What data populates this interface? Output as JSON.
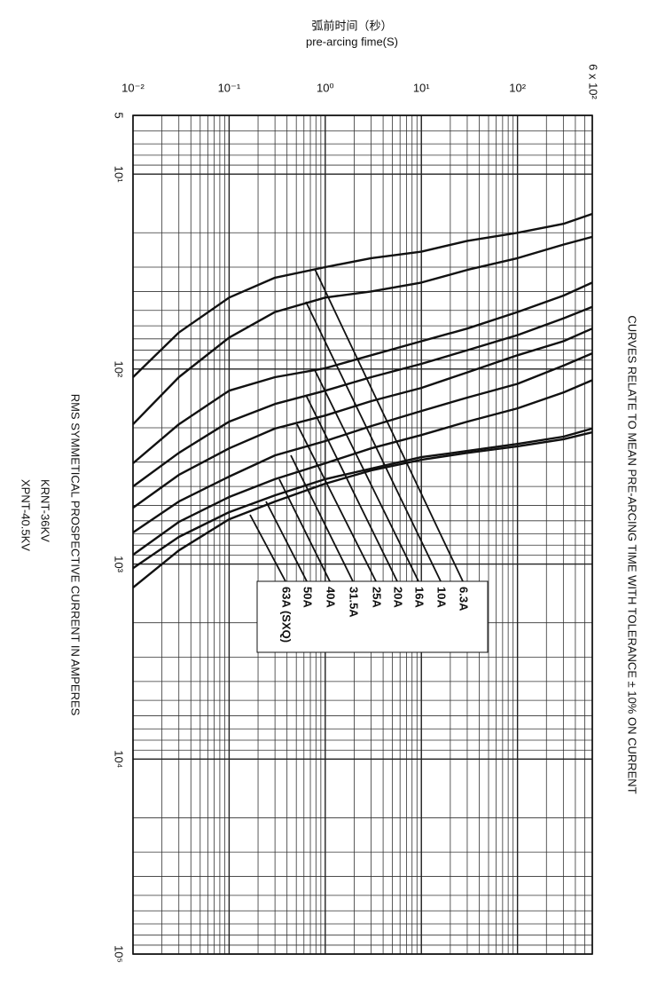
{
  "chart_data": {
    "type": "line",
    "title": "弧前时间（秒）",
    "subtitle": "pre-arcing fime(S)",
    "y_label": "RMS SYMMETICAL PROSPECTIVE CURRENT IN AMPERES",
    "models": [
      "KRNT-36KV",
      "XPNT-40.5KV"
    ],
    "annotation": "CURVES RELATE TO MEAN PRE-ARCING TIME WITH TOLERANCE ± 10% ON CURRENT",
    "log_x": true,
    "log_y": true,
    "y_inverted": true,
    "grid": true,
    "xlim": [
      0.01,
      600
    ],
    "ylim": [
      5,
      100000
    ],
    "xticks": [
      {
        "value": 0.01,
        "label": "10⁻²"
      },
      {
        "value": 0.1,
        "label": "10⁻¹"
      },
      {
        "value": 1,
        "label": "10⁰"
      },
      {
        "value": 10,
        "label": "10¹"
      },
      {
        "value": 100,
        "label": "10²"
      },
      {
        "value": 600,
        "label": "6 x 10²"
      }
    ],
    "yticks": [
      5,
      {
        "value": 10,
        "label": "10¹"
      },
      {
        "value": 100,
        "label": "10²"
      },
      {
        "value": 1000,
        "label": "10³"
      },
      {
        "value": 10000,
        "label": "10⁴"
      },
      {
        "value": 100000,
        "label": "10⁵"
      }
    ],
    "x": [
      0.01,
      0.03,
      0.1,
      0.3,
      1,
      3,
      10,
      30,
      100,
      300,
      600
    ],
    "series": [
      {
        "name": "6.3A",
        "color": "#111111",
        "values": [
          110,
          65,
          43,
          34,
          30,
          27,
          25,
          22,
          20,
          18,
          16
        ]
      },
      {
        "name": "10A",
        "color": "#111111",
        "values": [
          192,
          110,
          69,
          51,
          43,
          40,
          36,
          31,
          27,
          23,
          21
        ]
      },
      {
        "name": "16A",
        "color": "#111111",
        "values": [
          304,
          192,
          129,
          110,
          99,
          85,
          72,
          62,
          51,
          42,
          36
        ]
      },
      {
        "name": "20A",
        "color": "#111111",
        "values": [
          400,
          269,
          186,
          151,
          129,
          110,
          94,
          80,
          67,
          55,
          48
        ]
      },
      {
        "name": "25A",
        "color": "#111111",
        "values": [
          514,
          349,
          255,
          202,
          173,
          146,
          125,
          104,
          85,
          72,
          62
        ]
      },
      {
        "name": "31.5A",
        "color": "#111111",
        "values": [
          689,
          478,
          356,
          277,
          234,
          196,
          164,
          140,
          119,
          96,
          83
        ]
      },
      {
        "name": "40A",
        "color": "#111111",
        "values": [
          896,
          608,
          453,
          367,
          304,
          255,
          218,
          186,
          159,
          132,
          114
        ]
      },
      {
        "name": "50A",
        "color": "#111111",
        "values": [
          1050,
          726,
          542,
          444,
          367,
          324,
          283,
          263,
          242,
          222,
          202
        ]
      },
      {
        "name": "63A (SXQ)",
        "color": "#111111",
        "values": [
          1321,
          851,
          589,
          478,
          387,
          331,
          292,
          269,
          249,
          229,
          211
        ]
      }
    ]
  }
}
